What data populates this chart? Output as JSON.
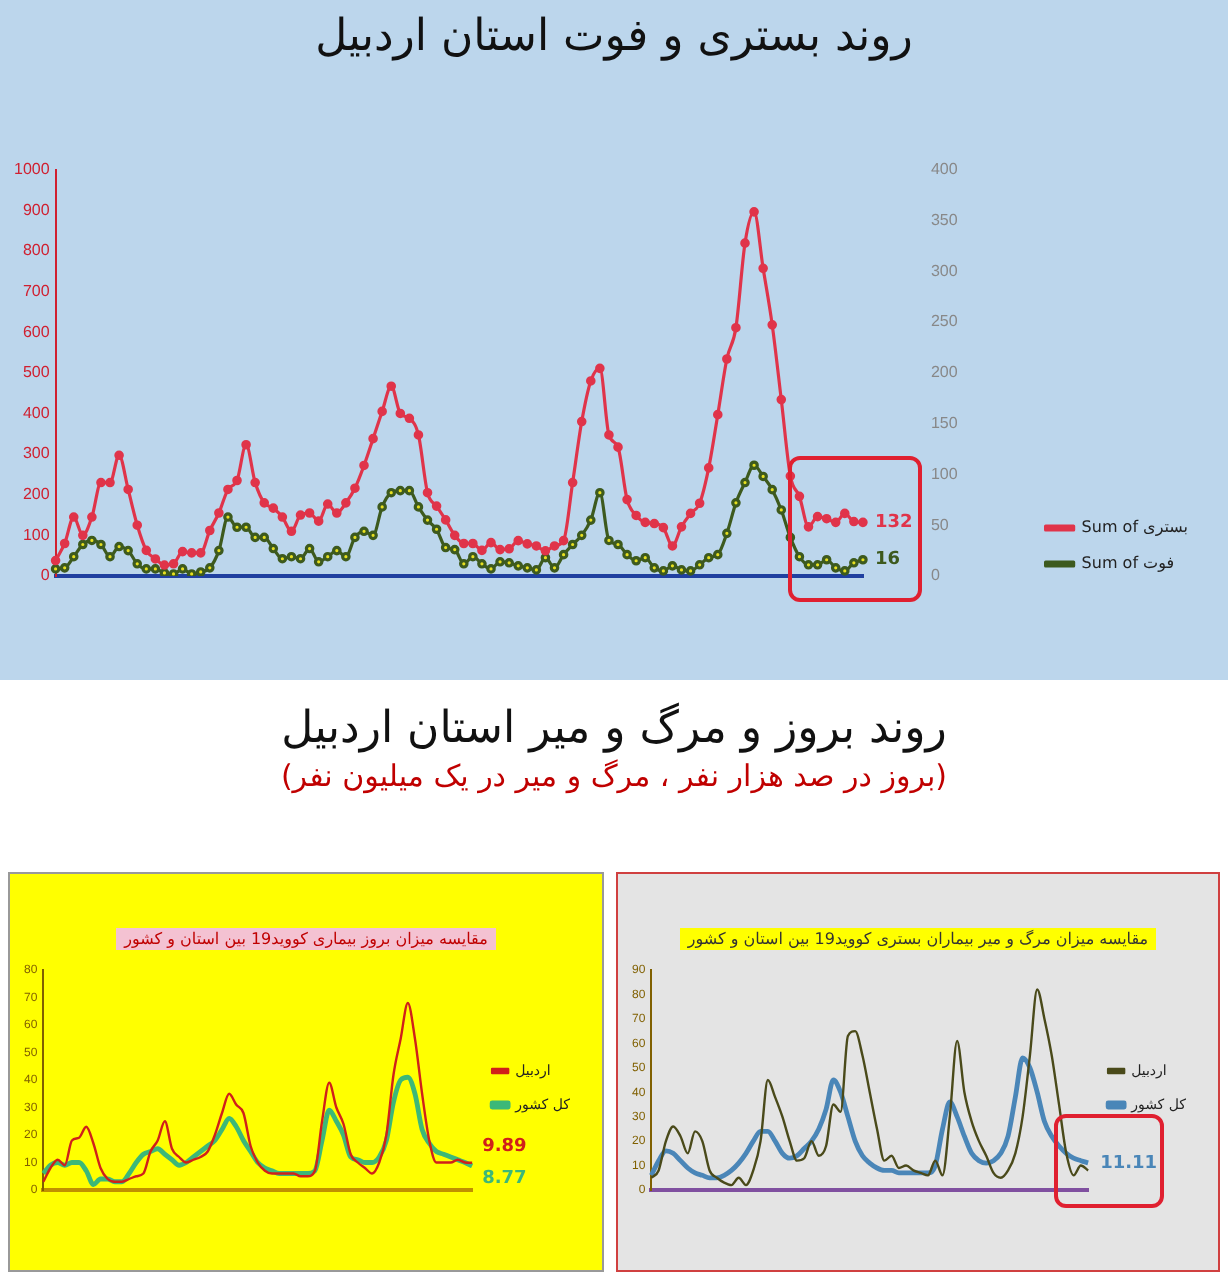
{
  "chart_data": [
    {
      "type": "line",
      "title": "روند بستری و فوت استان اردبیل",
      "categories": [
        null,
        null,
        null,
        null,
        null,
        null,
        null,
        null,
        null,
        null,
        null,
        null,
        null,
        null,
        null,
        null,
        null,
        null,
        null,
        null,
        null,
        null,
        null,
        null,
        null,
        null,
        null,
        null,
        null,
        null,
        null,
        null,
        null,
        null,
        null,
        null,
        null,
        null,
        null,
        null,
        null,
        null,
        null,
        null,
        null,
        null,
        null,
        null,
        null,
        null,
        null,
        null,
        null,
        null,
        null,
        null,
        null,
        null,
        null,
        null,
        null,
        null,
        null,
        null,
        null,
        null,
        null,
        null,
        null,
        null,
        null,
        null,
        null,
        null,
        null,
        null,
        null,
        null,
        null,
        null,
        null,
        null,
        null,
        null,
        null,
        null,
        null,
        null,
        null,
        null
      ],
      "ylim": [
        0,
        1000
      ],
      "yticks": [
        0,
        100,
        200,
        300,
        400,
        500,
        600,
        700,
        800,
        900,
        1000
      ],
      "y2lim": [
        0,
        400
      ],
      "y2ticks": [
        0,
        50,
        100,
        150,
        200,
        250,
        300,
        350,
        400
      ],
      "tick_labels": "y",
      "legend": "bottom right",
      "marker": "circle",
      "line_style": "solid",
      "series": [
        {
          "name": "Sum of بستری",
          "color": "#e0344a",
          "values": [
            38,
            80,
            145,
            100,
            145,
            230,
            230,
            297,
            213,
            125,
            63,
            42,
            27,
            30,
            60,
            57,
            57,
            112,
            155,
            213,
            235,
            323,
            230,
            180,
            167,
            145,
            110,
            150,
            155,
            135,
            177,
            155,
            180,
            216,
            272,
            338,
            405,
            467,
            400,
            388,
            347,
            205,
            172,
            138,
            100,
            80,
            80,
            63,
            82,
            65,
            67,
            87,
            79,
            74,
            62,
            74,
            87,
            230,
            380,
            480,
            511,
            347,
            317,
            188,
            149,
            132,
            129,
            119,
            74,
            121,
            154,
            179,
            266,
            397,
            534,
            611,
            819,
            896,
            757,
            618,
            434,
            246,
            196,
            121,
            146,
            141,
            132,
            154,
            134,
            132
          ],
          "value_labels": [
            null,
            null,
            null,
            null,
            null,
            null,
            null,
            null,
            null,
            null,
            null,
            null,
            null,
            null,
            null,
            null,
            null,
            null,
            null,
            null,
            null,
            null,
            null,
            null,
            null,
            null,
            null,
            null,
            null,
            null,
            null,
            null,
            null,
            null,
            null,
            null,
            null,
            null,
            null,
            null,
            null,
            null,
            null,
            null,
            null,
            null,
            null,
            null,
            null,
            null,
            null,
            null,
            null,
            null,
            null,
            null,
            null,
            null,
            null,
            null,
            null,
            null,
            null,
            null,
            null,
            null,
            null,
            null,
            null,
            null,
            null,
            null,
            null,
            null,
            null,
            null,
            null,
            null,
            null,
            null,
            null,
            null,
            null,
            null,
            null,
            null,
            null,
            null,
            null,
            "132"
          ]
        },
        {
          "name": "Sum of فوت",
          "color": "#3d5a1e",
          "axis": "y2",
          "values": [
            7,
            8,
            19,
            31,
            35,
            31,
            19,
            29,
            25,
            12,
            7,
            7,
            3,
            2,
            7,
            2,
            4,
            8,
            25,
            58,
            48,
            48,
            38,
            38,
            27,
            17,
            19,
            17,
            27,
            14,
            19,
            25,
            19,
            38,
            44,
            40,
            68,
            82,
            84,
            84,
            68,
            55,
            46,
            28,
            26,
            12,
            19,
            12,
            7,
            14,
            13,
            10,
            8,
            6,
            18,
            8,
            21,
            31,
            40,
            55,
            82,
            35,
            31,
            21,
            15,
            18,
            8,
            5,
            10,
            6,
            5,
            11,
            18,
            21,
            42,
            72,
            92,
            109,
            98,
            85,
            65,
            38,
            19,
            11,
            11,
            16,
            8,
            5,
            13,
            16
          ],
          "value_labels": [
            null,
            null,
            null,
            null,
            null,
            null,
            null,
            null,
            null,
            null,
            null,
            null,
            null,
            null,
            null,
            null,
            null,
            null,
            null,
            null,
            null,
            null,
            null,
            null,
            null,
            null,
            null,
            null,
            null,
            null,
            null,
            null,
            null,
            null,
            null,
            null,
            null,
            null,
            null,
            null,
            null,
            null,
            null,
            null,
            null,
            null,
            null,
            null,
            null,
            null,
            null,
            null,
            null,
            null,
            null,
            null,
            null,
            null,
            null,
            null,
            null,
            null,
            null,
            null,
            null,
            null,
            null,
            null,
            null,
            null,
            null,
            null,
            null,
            null,
            null,
            null,
            null,
            null,
            null,
            null,
            null,
            null,
            null,
            null,
            null,
            null,
            null,
            null,
            null,
            "16"
          ]
        }
      ]
    },
    {
      "type": "other",
      "title": "روند بروز و مرگ و میر استان اردبیل",
      "subtitle": "(بروز در صد هزار نفر ، مرگ و میر در یک میلیون نفر)"
    },
    {
      "type": "line",
      "title": "مقایسه میزان بروز بیماری کووید19 بین استان و کشور",
      "categories": [
        null,
        null,
        null,
        null,
        null,
        null,
        null,
        null,
        null,
        null,
        null,
        null,
        null,
        null,
        null,
        null,
        null,
        null,
        null,
        null,
        null,
        null,
        null,
        null,
        null,
        null,
        null,
        null,
        null,
        null,
        null,
        null,
        null,
        null,
        null,
        null,
        null,
        null,
        null,
        null,
        null,
        null,
        null,
        null,
        null,
        null,
        null,
        null,
        null,
        null,
        null,
        null,
        null,
        null,
        null,
        null,
        null,
        null,
        null,
        null,
        null
      ],
      "ylim": [
        0,
        80
      ],
      "yticks": [
        0,
        10,
        20,
        30,
        40,
        50,
        60,
        70,
        80
      ],
      "tick_labels": "y",
      "legend": "right",
      "line_style": "solid",
      "series": [
        {
          "name": "اردبیل",
          "color": "#d0201a",
          "values": [
            3,
            8,
            11,
            9,
            18,
            19,
            23,
            17,
            8,
            4,
            3,
            3,
            4,
            5,
            6,
            14,
            18,
            25,
            15,
            12,
            10,
            11,
            12,
            14,
            20,
            28,
            35,
            31,
            28,
            16,
            10,
            7,
            6,
            6,
            6,
            6,
            5,
            5,
            7,
            25,
            39,
            30,
            24,
            13,
            10,
            8,
            6,
            10,
            20,
            42,
            55,
            68,
            55,
            35,
            18,
            10,
            10,
            10,
            11,
            10,
            9.89
          ],
          "value_labels": [
            null,
            null,
            null,
            null,
            null,
            null,
            null,
            null,
            null,
            null,
            null,
            null,
            null,
            null,
            null,
            null,
            null,
            null,
            null,
            null,
            null,
            null,
            null,
            null,
            null,
            null,
            null,
            null,
            null,
            null,
            null,
            null,
            null,
            null,
            null,
            null,
            null,
            null,
            null,
            null,
            null,
            null,
            null,
            null,
            null,
            null,
            null,
            null,
            null,
            null,
            null,
            null,
            null,
            null,
            null,
            null,
            null,
            null,
            null,
            null,
            "9.89"
          ]
        },
        {
          "name": "کل کشور",
          "color": "#3cb878",
          "values": [
            6,
            9,
            10,
            9,
            10,
            10,
            7,
            2,
            4,
            4,
            3,
            3,
            6,
            10,
            13,
            14,
            15,
            13,
            11,
            9,
            10,
            12,
            14,
            16,
            18,
            22,
            26,
            23,
            18,
            14,
            10,
            8,
            7,
            6,
            6,
            6,
            6,
            6,
            7,
            18,
            29,
            25,
            20,
            12,
            11,
            10,
            10,
            12,
            18,
            32,
            40,
            41,
            35,
            22,
            17,
            14,
            13,
            12,
            11,
            10,
            8.77
          ],
          "value_labels": [
            null,
            null,
            null,
            null,
            null,
            null,
            null,
            null,
            null,
            null,
            null,
            null,
            null,
            null,
            null,
            null,
            null,
            null,
            null,
            null,
            null,
            null,
            null,
            null,
            null,
            null,
            null,
            null,
            null,
            null,
            null,
            null,
            null,
            null,
            null,
            null,
            null,
            null,
            null,
            null,
            null,
            null,
            null,
            null,
            null,
            null,
            null,
            null,
            null,
            null,
            null,
            null,
            null,
            null,
            null,
            null,
            null,
            null,
            null,
            null,
            "8.77"
          ]
        }
      ]
    },
    {
      "type": "line",
      "title": "مقایسه میزان مرگ و میر بیماران بستری کووید19 بین استان و کشور",
      "categories": [
        null,
        null,
        null,
        null,
        null,
        null,
        null,
        null,
        null,
        null,
        null,
        null,
        null,
        null,
        null,
        null,
        null,
        null,
        null,
        null,
        null,
        null,
        null,
        null,
        null,
        null,
        null,
        null,
        null,
        null,
        null,
        null,
        null,
        null,
        null,
        null,
        null,
        null,
        null,
        null,
        null,
        null,
        null,
        null,
        null,
        null,
        null,
        null,
        null,
        null,
        null,
        null,
        null,
        null,
        null,
        null,
        null,
        null,
        null,
        null,
        null
      ],
      "ylim": [
        0,
        90
      ],
      "yticks": [
        0,
        10,
        20,
        30,
        40,
        50,
        60,
        70,
        80,
        90
      ],
      "tick_labels": "y",
      "legend": "right",
      "line_style": "solid",
      "series": [
        {
          "name": "اردبیل",
          "color": "#4a4a1a",
          "values": [
            5,
            8,
            20,
            26,
            22,
            15,
            24,
            20,
            8,
            5,
            3,
            2,
            5,
            2,
            8,
            20,
            45,
            38,
            30,
            20,
            12,
            13,
            20,
            14,
            18,
            35,
            32,
            63,
            65,
            55,
            40,
            25,
            12,
            14,
            9,
            10,
            8,
            7,
            6,
            12,
            6,
            30,
            61,
            40,
            28,
            20,
            14,
            7,
            5,
            8,
            15,
            30,
            55,
            82,
            70,
            55,
            35,
            15,
            6,
            10,
            8
          ]
        },
        {
          "name": "کل کشور",
          "color": "#4a86b8",
          "values": [
            6,
            12,
            16,
            15,
            12,
            9,
            7,
            6,
            5,
            5,
            6,
            8,
            11,
            15,
            20,
            24,
            24,
            20,
            15,
            13,
            14,
            17,
            20,
            25,
            33,
            45,
            40,
            30,
            20,
            14,
            11,
            9,
            8,
            8,
            7,
            7,
            7,
            7,
            7,
            10,
            25,
            36,
            30,
            22,
            15,
            12,
            11,
            12,
            15,
            22,
            38,
            54,
            50,
            40,
            28,
            22,
            18,
            15,
            13,
            12,
            11.11
          ],
          "value_labels": [
            null,
            null,
            null,
            null,
            null,
            null,
            null,
            null,
            null,
            null,
            null,
            null,
            null,
            null,
            null,
            null,
            null,
            null,
            null,
            null,
            null,
            null,
            null,
            null,
            null,
            null,
            null,
            null,
            null,
            null,
            null,
            null,
            null,
            null,
            null,
            null,
            null,
            null,
            null,
            null,
            null,
            null,
            null,
            null,
            null,
            null,
            null,
            null,
            null,
            null,
            null,
            null,
            null,
            null,
            null,
            null,
            null,
            null,
            null,
            null,
            "11.11"
          ]
        }
      ]
    }
  ]
}
